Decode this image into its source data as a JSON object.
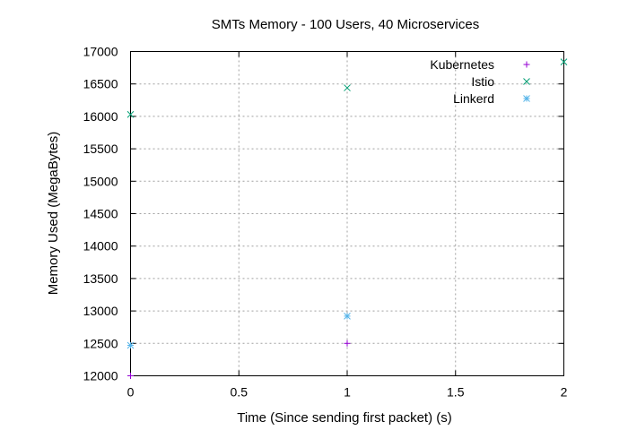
{
  "chart_data": {
    "type": "scatter",
    "title": "SMTs Memory - 100 Users, 40 Microservices",
    "xlabel": "Time (Since sending first packet) (s)",
    "ylabel": "Memory Used (MegaBytes)",
    "xlim": [
      0,
      2
    ],
    "ylim": [
      12000,
      17000
    ],
    "xticks": [
      0,
      0.5,
      1,
      1.5,
      2
    ],
    "xtick_labels": [
      "0",
      "0.5",
      "1",
      "1.5",
      "2"
    ],
    "yticks": [
      12000,
      12500,
      13000,
      13500,
      14000,
      14500,
      15000,
      15500,
      16000,
      16500,
      17000
    ],
    "ytick_labels": [
      "12000",
      "12500",
      "13000",
      "13500",
      "14000",
      "14500",
      "15000",
      "15500",
      "16000",
      "16500",
      "17000"
    ],
    "grid": true,
    "legend_position": "top-right",
    "series": [
      {
        "name": "Kubernetes",
        "marker": "plus",
        "color": "#9400d3",
        "points": [
          {
            "x": 0,
            "y": 12000
          },
          {
            "x": 1,
            "y": 12500
          }
        ]
      },
      {
        "name": "Istio",
        "marker": "cross",
        "color": "#009e73",
        "points": [
          {
            "x": 0,
            "y": 16030
          },
          {
            "x": 1,
            "y": 16440
          },
          {
            "x": 2,
            "y": 16840
          }
        ]
      },
      {
        "name": "Linkerd",
        "marker": "star",
        "color": "#56b4e9",
        "points": [
          {
            "x": 0,
            "y": 12470
          },
          {
            "x": 1,
            "y": 12920
          }
        ]
      }
    ]
  }
}
